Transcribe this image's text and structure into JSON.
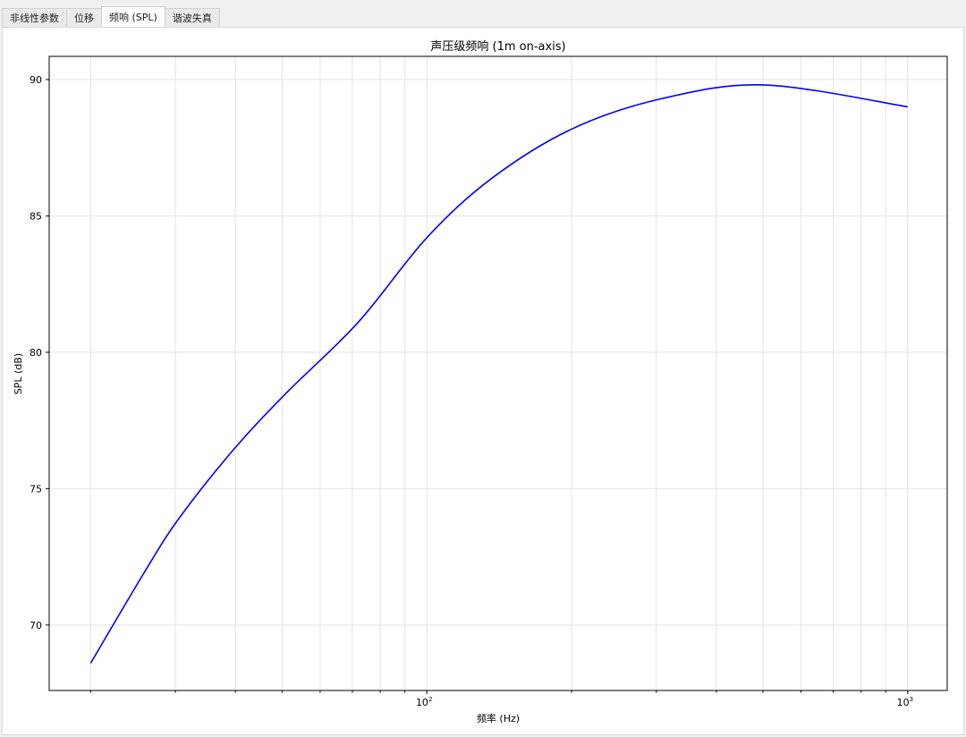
{
  "tabs": [
    {
      "label": "非线性参数"
    },
    {
      "label": "位移"
    },
    {
      "label": "频响 (SPL)",
      "active": true
    },
    {
      "label": "谐波失真"
    }
  ],
  "chart_data": {
    "type": "line",
    "title": "声压级频响 (1m on-axis)",
    "xlabel": "频率 (Hz)",
    "ylabel": "SPL (dB)",
    "xscale": "log",
    "xlim": [
      16.4,
      1208
    ],
    "ylim": [
      67.6,
      90.85
    ],
    "xticks": [
      {
        "value": 100,
        "label": "10",
        "exp": "2"
      },
      {
        "value": 1000,
        "label": "10",
        "exp": "3"
      }
    ],
    "yticks": [
      70,
      75,
      80,
      85,
      90
    ],
    "grid": true,
    "color": "#0000ff",
    "x": [
      20,
      25.8,
      30.5,
      39.5,
      51,
      72,
      100,
      137,
      201,
      308,
      505,
      1000
    ],
    "y": [
      68.6,
      71.9,
      73.9,
      76.4,
      78.5,
      81.1,
      84.2,
      86.4,
      88.2,
      89.3,
      89.8,
      89.0
    ]
  }
}
